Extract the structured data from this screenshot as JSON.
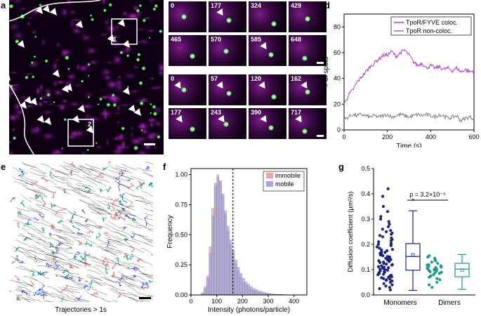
{
  "panels": {
    "a": {
      "letter": "a",
      "inset_labels": [
        "1",
        "2"
      ]
    },
    "b": {
      "letter": "b",
      "times": [
        "0",
        "177",
        "324",
        "429",
        "465",
        "570",
        "585",
        "648"
      ]
    },
    "c": {
      "letter": "c",
      "times": [
        "0",
        "57",
        "120",
        "162",
        "177",
        "243",
        "390",
        "717"
      ]
    },
    "e": {
      "letter": "e",
      "caption": "Trajectories > 1s"
    }
  },
  "colors": {
    "magenta": "#b040c8",
    "gray": "#808080",
    "immobile": "#f4a0a0",
    "mobile": "#a0a8e8",
    "monomer": "#1a237e",
    "dimer": "#1a9a8a"
  },
  "chart_data": [
    {
      "panel": "d",
      "type": "line",
      "xlabel": "Time (s)",
      "ylabel": "# of spots",
      "xlim": [
        0,
        600
      ],
      "ylim": [
        0,
        90
      ],
      "xticks": [
        0,
        200,
        400,
        600
      ],
      "yticks": [
        0,
        20,
        40,
        60,
        80
      ],
      "legend": "top-right",
      "series": [
        {
          "name": "TpoR/FYVE coloc.",
          "color": "#b040c8",
          "x": [
            0,
            20,
            40,
            60,
            80,
            100,
            120,
            140,
            160,
            180,
            200,
            220,
            240,
            260,
            280,
            300,
            320,
            340,
            360,
            380,
            400,
            420,
            440,
            460,
            480,
            500,
            520,
            540,
            560,
            580,
            600
          ],
          "y": [
            20,
            27,
            31,
            37,
            41,
            45,
            49,
            52,
            55,
            58,
            58,
            61,
            57,
            60,
            62,
            58,
            53,
            50,
            52,
            48,
            50,
            48,
            49,
            47,
            48,
            46,
            48,
            45,
            47,
            45,
            46
          ]
        },
        {
          "name": "TpoR non-coloc.",
          "color": "#808080",
          "x": [
            0,
            20,
            40,
            60,
            80,
            100,
            120,
            140,
            160,
            180,
            200,
            220,
            240,
            260,
            280,
            300,
            320,
            340,
            360,
            380,
            400,
            420,
            440,
            460,
            480,
            500,
            520,
            540,
            560,
            580,
            600
          ],
          "y": [
            8,
            10,
            12,
            11,
            12,
            11,
            10,
            11,
            10,
            11,
            12,
            10,
            11,
            12,
            11,
            10,
            11,
            12,
            11,
            12,
            11,
            10,
            12,
            11,
            9,
            10,
            11,
            7,
            9,
            10,
            9
          ]
        }
      ]
    },
    {
      "panel": "f",
      "type": "bar",
      "xlabel": "Intensity (photons/particle)",
      "ylabel": "Frequency",
      "xlim": [
        0,
        450
      ],
      "ylim": [
        0,
        1.05
      ],
      "xticks": [
        0,
        100,
        200,
        300,
        400
      ],
      "yticks": [
        0.0,
        0.25,
        0.5,
        0.75,
        1.0
      ],
      "threshold": 163,
      "bin_width": 10,
      "bin_starts": [
        40,
        50,
        60,
        70,
        80,
        90,
        100,
        110,
        120,
        130,
        140,
        150,
        160,
        170,
        180,
        190,
        200,
        210,
        220,
        230,
        240,
        250,
        260,
        270,
        280,
        290,
        300,
        310,
        320,
        330,
        340,
        350,
        360,
        370,
        380,
        390
      ],
      "legend": "top-right",
      "series": [
        {
          "name": "immobile",
          "color": "#f4a0a0",
          "values": [
            0.02,
            0.07,
            0.16,
            0.4,
            0.72,
            0.93,
            1.0,
            0.94,
            0.82,
            0.67,
            0.53,
            0.42,
            0.33,
            0.26,
            0.2,
            0.15,
            0.11,
            0.09,
            0.07,
            0.05,
            0.04,
            0.03,
            0.025,
            0.02,
            0.015,
            0.012,
            0.01,
            0.008,
            0.006,
            0.005,
            0.004,
            0.003,
            0.002,
            0.002,
            0.001,
            0.001
          ]
        },
        {
          "name": "mobile",
          "color": "#a0a8e8",
          "values": [
            0.01,
            0.05,
            0.14,
            0.35,
            0.66,
            0.9,
            0.98,
            0.95,
            0.84,
            0.7,
            0.57,
            0.46,
            0.37,
            0.29,
            0.23,
            0.18,
            0.14,
            0.11,
            0.09,
            0.07,
            0.055,
            0.045,
            0.035,
            0.03,
            0.022,
            0.017,
            0.013,
            0.01,
            0.008,
            0.006,
            0.005,
            0.004,
            0.003,
            0.002,
            0.002,
            0.001
          ]
        }
      ]
    },
    {
      "panel": "g",
      "type": "scatter",
      "ylabel": "Diffusion coefficient (µm²/s)",
      "ylim": [
        0,
        0.5
      ],
      "yticks": [
        0.0,
        0.1,
        0.2,
        0.3,
        0.4,
        0.5
      ],
      "categories": [
        "Monomers",
        "Dimers"
      ],
      "annotation": "p = 3.2×10⁻⁵",
      "groups": [
        {
          "name": "Monomers",
          "color": "#1a237e",
          "box": {
            "q1": 0.098,
            "median": 0.152,
            "q3": 0.203,
            "mean": 0.158,
            "whisker_low": 0.018,
            "whisker_high": 0.333,
            "outlier": 0.377
          },
          "points": [
            0.42,
            0.39,
            0.35,
            0.33,
            0.31,
            0.3,
            0.29,
            0.28,
            0.27,
            0.26,
            0.255,
            0.25,
            0.245,
            0.24,
            0.235,
            0.23,
            0.225,
            0.22,
            0.215,
            0.21,
            0.205,
            0.2,
            0.198,
            0.195,
            0.19,
            0.185,
            0.18,
            0.178,
            0.175,
            0.17,
            0.168,
            0.165,
            0.16,
            0.158,
            0.155,
            0.152,
            0.15,
            0.148,
            0.145,
            0.142,
            0.14,
            0.138,
            0.135,
            0.132,
            0.13,
            0.128,
            0.125,
            0.122,
            0.12,
            0.118,
            0.115,
            0.112,
            0.11,
            0.108,
            0.105,
            0.102,
            0.1,
            0.098,
            0.095,
            0.092,
            0.09,
            0.088,
            0.085,
            0.082,
            0.08,
            0.078,
            0.075,
            0.072,
            0.07,
            0.068,
            0.065,
            0.062,
            0.06,
            0.058,
            0.055,
            0.05,
            0.045,
            0.04,
            0.035,
            0.03,
            0.025,
            0.02
          ]
        },
        {
          "name": "Dimers",
          "color": "#1a9a8a",
          "box": {
            "q1": 0.072,
            "median": 0.102,
            "q3": 0.125,
            "mean": 0.098,
            "whisker_low": 0.022,
            "whisker_high": 0.16
          },
          "points": [
            0.155,
            0.15,
            0.145,
            0.14,
            0.135,
            0.13,
            0.125,
            0.12,
            0.118,
            0.115,
            0.112,
            0.11,
            0.108,
            0.105,
            0.102,
            0.1,
            0.098,
            0.095,
            0.092,
            0.09,
            0.088,
            0.085,
            0.08,
            0.075,
            0.07,
            0.065,
            0.06,
            0.05,
            0.04,
            0.03
          ]
        }
      ]
    }
  ]
}
